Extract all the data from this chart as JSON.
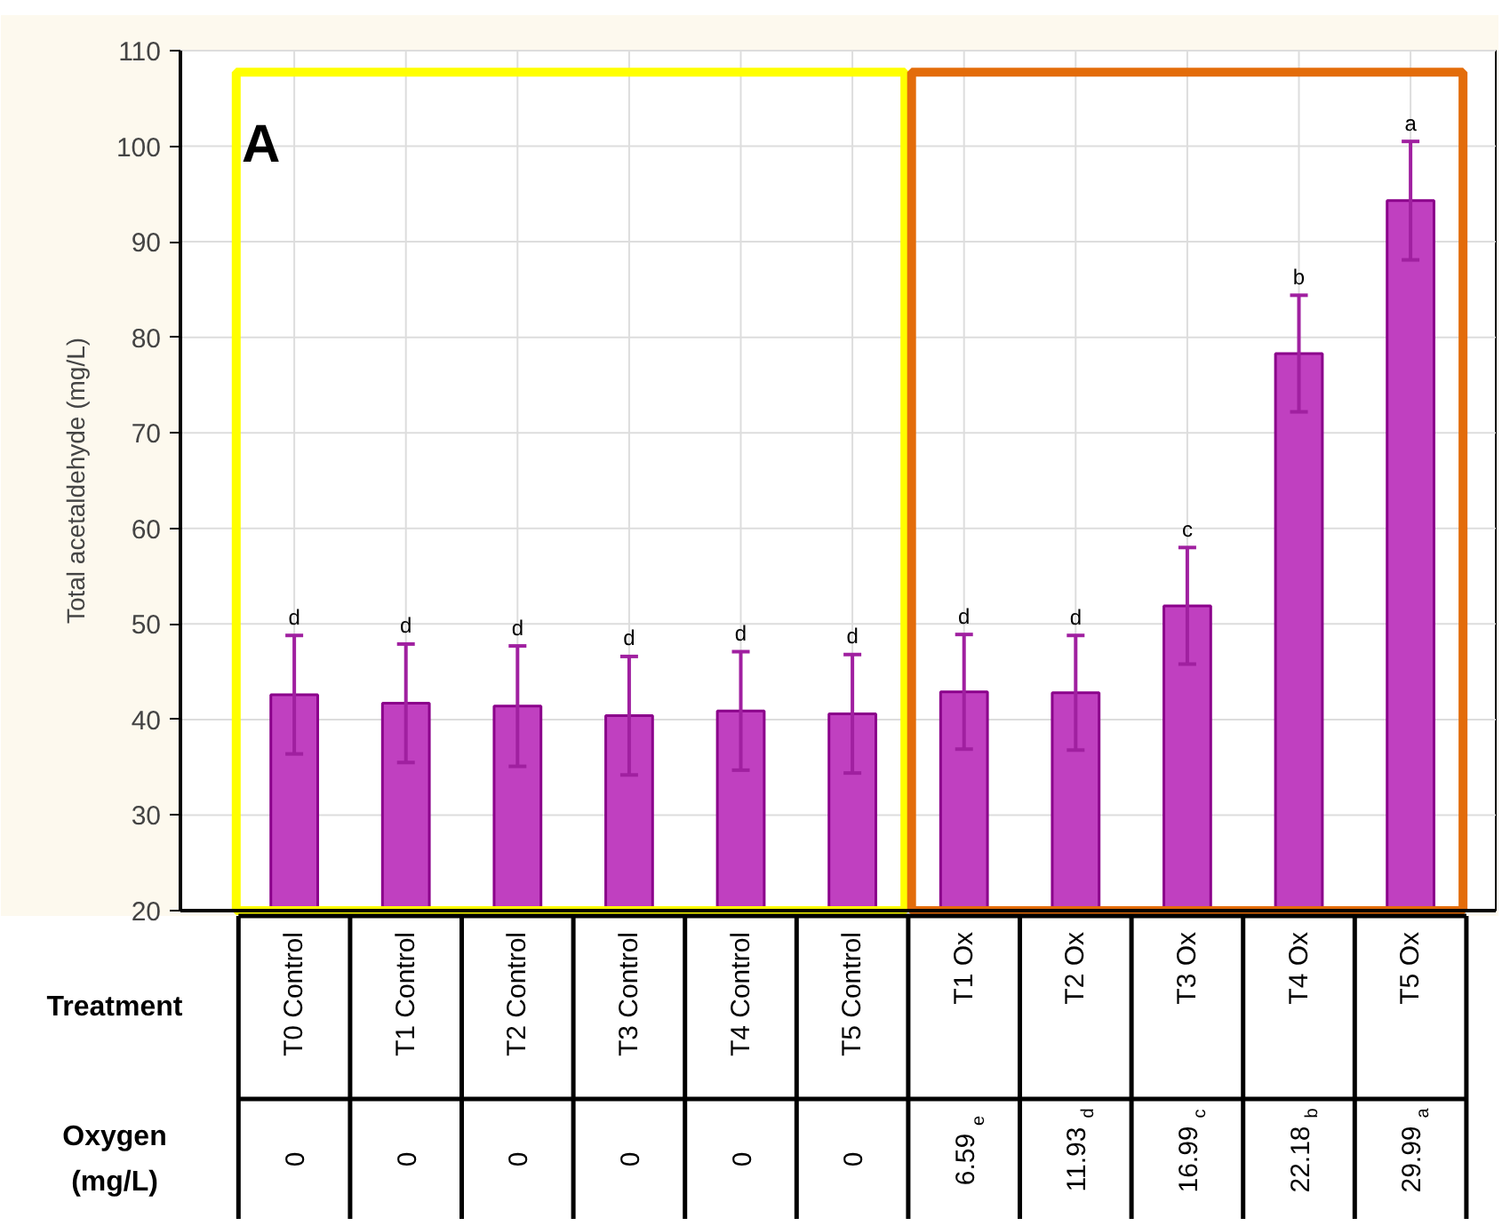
{
  "chart_data": {
    "type": "bar",
    "ylabel": "Total acetaldehyde (mg/L)",
    "xlabel": "Treatment",
    "categories": [
      "T0 Control",
      "T1 Control",
      "T2 Control",
      "T3 Control",
      "T4 Control",
      "T5 Control",
      "T1 Ox",
      "T2 Ox",
      "T3 Ox",
      "T4 Ox",
      "T5 Ox"
    ],
    "values": [
      42.6,
      41.7,
      41.4,
      40.4,
      40.9,
      40.6,
      42.9,
      42.8,
      51.9,
      78.3,
      94.3
    ],
    "errors": [
      6.2,
      6.2,
      6.3,
      6.2,
      6.2,
      6.2,
      6.0,
      6.0,
      6.1,
      6.1,
      6.2
    ],
    "color": "#c040c0",
    "ylim": [
      20,
      110
    ],
    "yticks": [
      20,
      30,
      40,
      50,
      60,
      70,
      80,
      90,
      100,
      110
    ],
    "grid": true,
    "value_labels": [
      "d",
      "d",
      "d",
      "d",
      "d",
      "d",
      "d",
      "d",
      "c",
      "b",
      "a"
    ],
    "annotations": [
      "A",
      "Oxygen (mg/L)",
      "0",
      "0",
      "0",
      "0",
      "0",
      "0",
      "6.59$^{e}$",
      "11.93$^{d}$",
      "16.99$^{c}$",
      "22.18$^{b}$",
      "29.99$^{a}$"
    ]
  }
}
